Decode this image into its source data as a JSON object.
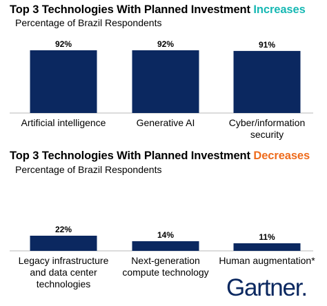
{
  "colors": {
    "bar": "#0b2860",
    "increase_accent": "#16b8b3",
    "decrease_accent": "#ee6b1c",
    "axis": "#b8b8b8",
    "logo": "#0b2860"
  },
  "logo": {
    "text": "Gartner",
    "dot": "."
  },
  "chart_data": [
    {
      "type": "bar",
      "title": "Top 3 Technologies With Planned Investment ",
      "title_accent": "Increases",
      "subtitle": "Percentage of Brazil Respondents",
      "categories": [
        "Artificial intelligence",
        "Generative AI",
        "Cyber/information security"
      ],
      "category_lines": [
        [
          "Artificial intelligence"
        ],
        [
          "Generative AI"
        ],
        [
          "Cyber/information",
          "security"
        ]
      ],
      "values": [
        92,
        92,
        91
      ],
      "data_labels": [
        "92%",
        "92%",
        "91%"
      ],
      "ylim": [
        0,
        100
      ],
      "grid": false,
      "legend": "none"
    },
    {
      "type": "bar",
      "title": "Top 3 Technologies With Planned Investment ",
      "title_accent": "Decreases",
      "subtitle": "Percentage of Brazil Respondents",
      "categories": [
        "Legacy infrastructure and data center technologies",
        "Next-generation compute technology",
        "Human augmentation*"
      ],
      "category_lines": [
        [
          "Legacy infrastructure",
          "and data center",
          "technologies"
        ],
        [
          "Next-generation",
          "compute technology"
        ],
        [
          "Human augmentation*"
        ]
      ],
      "values": [
        22,
        14,
        11
      ],
      "data_labels": [
        "22%",
        "14%",
        "11%"
      ],
      "ylim": [
        0,
        100
      ],
      "grid": false,
      "legend": "none"
    }
  ]
}
